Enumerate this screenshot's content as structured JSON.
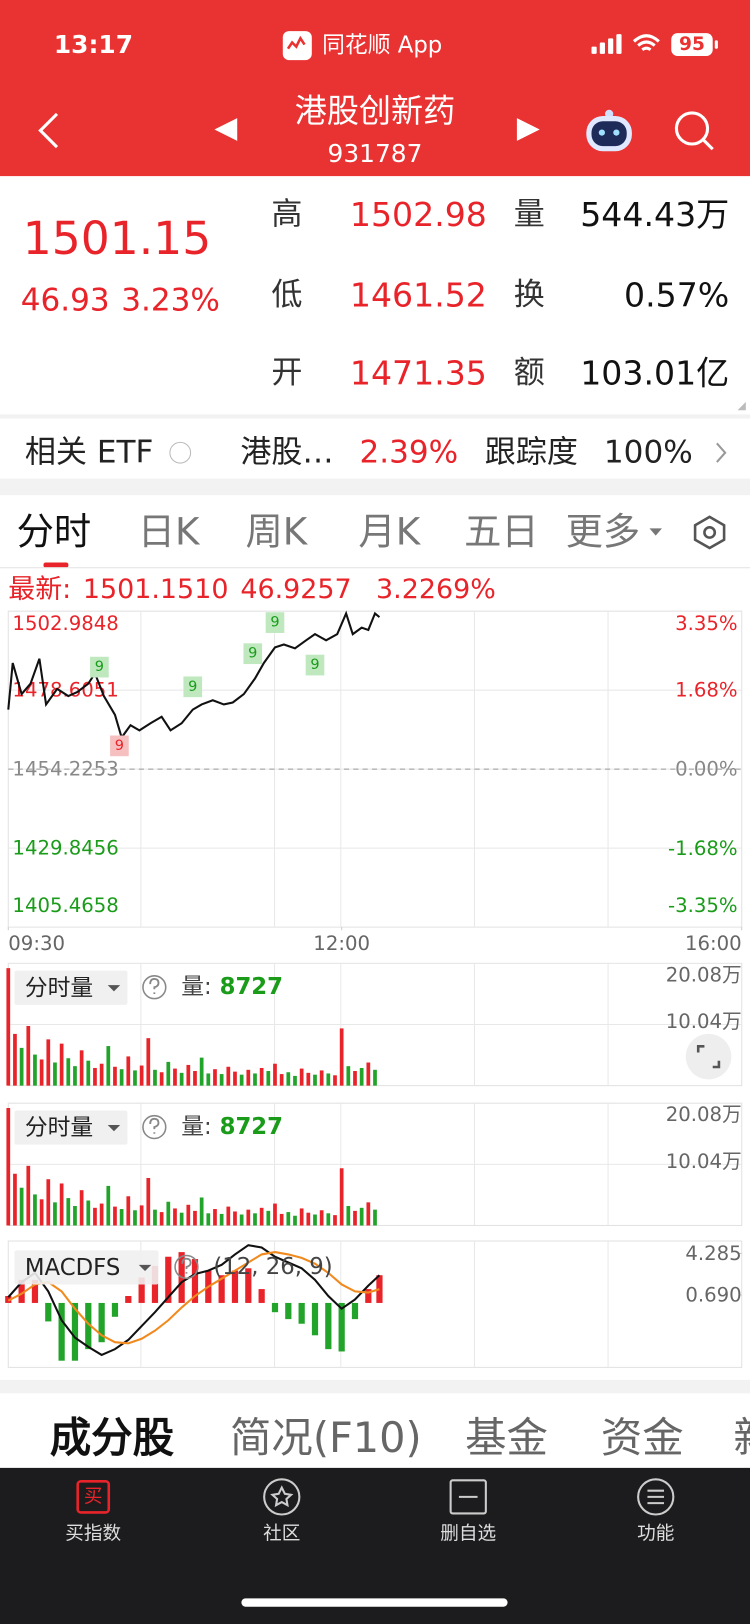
{
  "status_bar": {
    "time": "13:17",
    "app": "同花顺 App",
    "battery": "95"
  },
  "header": {
    "title": "港股创新药",
    "code": "931787"
  },
  "quote": {
    "price": "1501.15",
    "change": "46.93",
    "change_pct": "3.23%",
    "stats": [
      {
        "label": "高",
        "value": "1502.98"
      },
      {
        "label": "量",
        "value": "544.43万"
      },
      {
        "label": "低",
        "value": "1461.52"
      },
      {
        "label": "换",
        "value": "0.57%"
      },
      {
        "label": "开",
        "value": "1471.35"
      },
      {
        "label": "额",
        "value": "103.01亿"
      }
    ]
  },
  "etf": {
    "label": "相关 ETF",
    "name": "港股…",
    "change_pct": "2.39%",
    "tracking_label": "跟踪度",
    "tracking": "100%"
  },
  "tabs": [
    "分时",
    "日K",
    "周K",
    "月K",
    "五日",
    "更多"
  ],
  "latest": {
    "label": "最新:",
    "price": "1501.1510",
    "change": "46.9257",
    "change_pct": "3.2269%"
  },
  "chart_data": [
    {
      "type": "line",
      "color": "#111111",
      "up_color": "#e8242a",
      "down_color": "#1a9c1a",
      "flat_color": "#888888",
      "xlim": [
        0,
        330
      ],
      "xticks": [
        {
          "value": 0,
          "label": "09:30"
        },
        {
          "value": 150,
          "label": "12:00"
        },
        {
          "value": 330,
          "label": "16:00"
        }
      ],
      "ylim": [
        1405.4658,
        1502.9848
      ],
      "yticks": [
        1502.9848,
        1478.6051,
        1454.2253,
        1429.8456,
        1405.4658
      ],
      "y2lim": [
        -3.35,
        3.35
      ],
      "y2ticks": [
        {
          "value": 3.35,
          "label": "3.35%"
        },
        {
          "value": 1.68,
          "label": "1.68%"
        },
        {
          "value": 0,
          "label": "0.00%"
        },
        {
          "value": -1.68,
          "label": "-1.68%"
        },
        {
          "value": -3.35,
          "label": "-3.35%"
        }
      ],
      "x": [
        0,
        2,
        6,
        10,
        14,
        17,
        22,
        27,
        31,
        36,
        39,
        43,
        48,
        51,
        55,
        59,
        64,
        69,
        73,
        78,
        83,
        87,
        92,
        97,
        101,
        106,
        111,
        115,
        120,
        124,
        129,
        134,
        138,
        143,
        148,
        152,
        155,
        159,
        162,
        165,
        167
      ],
      "values": [
        1472.6,
        1487.0,
        1477.4,
        1480.6,
        1488.3,
        1474.2,
        1479.0,
        1476.8,
        1478.0,
        1480.6,
        1483.8,
        1476.8,
        1471.0,
        1464.0,
        1467.8,
        1466.2,
        1468.4,
        1470.4,
        1466.2,
        1468.4,
        1472.6,
        1474.2,
        1475.5,
        1474.2,
        1474.8,
        1477.4,
        1482.2,
        1487.0,
        1491.8,
        1492.7,
        1491.5,
        1494.0,
        1495.9,
        1494.0,
        1495.9,
        1502.3,
        1495.9,
        1497.9,
        1497.2,
        1502.3,
        1501.15
      ],
      "markers": [
        {
          "x": 41,
          "y": 1485.72,
          "label": "9",
          "side": "up"
        },
        {
          "x": 83,
          "y": 1479.64,
          "label": "9",
          "side": "up"
        },
        {
          "x": 50,
          "y": 1461.42,
          "label": "9",
          "side": "down"
        },
        {
          "x": 110,
          "y": 1489.87,
          "label": "9",
          "side": "up"
        },
        {
          "x": 120,
          "y": 1499.46,
          "label": "9",
          "side": "up"
        },
        {
          "x": 138,
          "y": 1486.36,
          "label": "9",
          "side": "up"
        }
      ]
    },
    {
      "type": "bar",
      "title": "分时量",
      "volume_label": "量:",
      "volume_value": "8727",
      "palette": {
        "up": "#e8242a",
        "down": "#22a32a"
      },
      "xlim": [
        0,
        330
      ],
      "ylim": [
        0,
        20.08
      ],
      "yticks": [
        {
          "value": 20.08,
          "label": "20.08万"
        },
        {
          "value": 10.04,
          "label": "10.04万"
        }
      ],
      "x": [
        0,
        3,
        6,
        9,
        12,
        15,
        18,
        21,
        24,
        27,
        30,
        33,
        36,
        39,
        42,
        45,
        48,
        51,
        54,
        57,
        60,
        63,
        66,
        69,
        72,
        75,
        78,
        81,
        84,
        87,
        90,
        93,
        96,
        99,
        102,
        105,
        108,
        111,
        114,
        117,
        120,
        123,
        126,
        129,
        132,
        135,
        138,
        141,
        144,
        147,
        150,
        153,
        156,
        159,
        162,
        165
      ],
      "values": [
        19.3,
        8.5,
        6.2,
        9.8,
        5.1,
        4.3,
        7.6,
        3.8,
        6.9,
        4.5,
        3.2,
        5.8,
        4.1,
        2.9,
        3.6,
        6.5,
        3.1,
        2.7,
        4.8,
        2.5,
        3.3,
        7.8,
        2.6,
        2.2,
        3.9,
        2.8,
        2.1,
        3.4,
        2.4,
        4.6,
        2.0,
        2.7,
        1.9,
        3.1,
        2.3,
        1.8,
        2.6,
        2.0,
        2.9,
        2.4,
        3.6,
        1.9,
        2.2,
        1.6,
        2.8,
        2.1,
        1.8,
        2.5,
        2.0,
        1.7,
        9.4,
        3.2,
        2.4,
        2.9,
        3.8,
        2.6
      ],
      "sides": [
        "up",
        "up",
        "down",
        "up",
        "down",
        "up",
        "up",
        "down",
        "up",
        "down",
        "down",
        "up",
        "down",
        "up",
        "up",
        "down",
        "up",
        "down",
        "up",
        "down",
        "up",
        "up",
        "down",
        "up",
        "down",
        "up",
        "down",
        "up",
        "up",
        "down",
        "down",
        "up",
        "down",
        "up",
        "up",
        "down",
        "up",
        "down",
        "up",
        "down",
        "up",
        "up",
        "down",
        "down",
        "up",
        "up",
        "down",
        "up",
        "down",
        "up",
        "up",
        "down",
        "up",
        "down",
        "up",
        "down"
      ]
    },
    {
      "type": "macd",
      "title": "MACDFS",
      "params": "(12, 26, 9)",
      "up_color": "#e8242a",
      "down_color": "#22a32a",
      "xlim": [
        0,
        330
      ],
      "ylim": [
        -5.58,
        5.36
      ],
      "yticks": [
        4.285,
        {
          "value": 0.69,
          "label": "0.690"
        }
      ],
      "x": [
        0,
        6,
        12,
        18,
        24,
        30,
        36,
        42,
        48,
        54,
        60,
        66,
        72,
        78,
        84,
        90,
        96,
        102,
        108,
        114,
        120,
        126,
        132,
        138,
        144,
        150,
        156,
        162,
        167
      ],
      "histogram": [
        0.6,
        2.0,
        2.0,
        -1.6,
        -5.0,
        -5.0,
        -4.0,
        -3.4,
        -1.2,
        0.6,
        2.2,
        3.2,
        4.0,
        4.4,
        3.8,
        2.8,
        2.4,
        2.8,
        3.0,
        1.2,
        -0.8,
        -1.4,
        -1.8,
        -2.8,
        -4.0,
        -4.2,
        -1.4,
        1.2,
        2.4
      ],
      "series": [
        {
          "color": "#111111",
          "values": [
            0.5,
            1.8,
            2.6,
            1.0,
            -1.5,
            -3.0,
            -3.8,
            -4.5,
            -4.0,
            -3.2,
            -2.0,
            -0.8,
            0.5,
            1.8,
            2.5,
            2.8,
            3.3,
            4.2,
            5.0,
            4.8,
            4.0,
            3.5,
            3.0,
            2.0,
            0.6,
            -0.5,
            0.3,
            1.5,
            2.4
          ]
        },
        {
          "color": "#f08a1e",
          "values": [
            0.2,
            0.8,
            1.6,
            1.8,
            1.0,
            -0.5,
            -1.8,
            -2.8,
            -3.4,
            -3.5,
            -3.1,
            -2.4,
            -1.5,
            -0.4,
            0.6,
            1.4,
            2.1,
            2.8,
            3.5,
            4.2,
            4.4,
            4.2,
            3.9,
            3.4,
            2.6,
            1.6,
            1.0,
            0.9,
            1.2
          ]
        }
      ]
    }
  ],
  "bottom_tabs": [
    "成分股",
    "简况(F10)",
    "基金",
    "资金",
    "新"
  ],
  "nav": {
    "icon": "买",
    "items": [
      "买指数",
      "社区",
      "删自选",
      "功能"
    ]
  }
}
